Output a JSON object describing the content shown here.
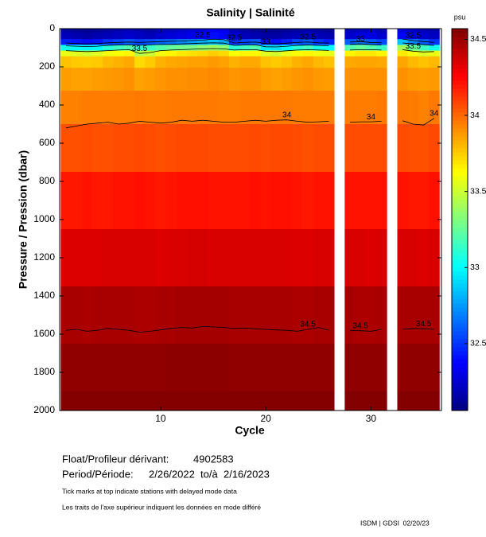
{
  "chart_data": {
    "type": "heatmap",
    "title": "Salinity | Salinité",
    "xlabel": "Cycle",
    "ylabel": "Pressure / Pression (dbar)",
    "colorbar_label": "psu",
    "x": [
      1,
      2,
      3,
      4,
      5,
      6,
      7,
      8,
      9,
      10,
      11,
      12,
      13,
      14,
      15,
      16,
      17,
      18,
      19,
      20,
      21,
      22,
      23,
      24,
      25,
      26,
      27,
      28,
      29,
      30,
      31,
      32,
      33,
      34,
      35,
      36
    ],
    "depths": [
      0,
      40,
      70,
      100,
      130,
      160,
      250,
      400,
      600,
      900,
      1200,
      1500,
      1800,
      2000
    ],
    "z": [
      [
        32.15,
        32.12,
        32.1,
        32.12,
        32.15,
        32.18,
        32.2,
        32.18,
        32.15,
        32.2,
        32.22,
        32.25,
        32.28,
        32.3,
        32.35,
        32.32,
        32.2,
        32.15,
        32.12,
        32.1,
        32.1,
        32.12,
        32.15,
        32.18,
        32.15,
        32.12,
        null,
        32.2,
        32.22,
        32.25,
        32.2,
        null,
        32.3,
        32.25,
        32.2,
        32.18
      ],
      [
        32.2,
        32.18,
        32.15,
        32.18,
        32.2,
        32.22,
        32.25,
        32.22,
        32.2,
        32.25,
        32.28,
        32.3,
        32.33,
        32.35,
        32.4,
        32.38,
        32.25,
        32.2,
        32.18,
        32.15,
        32.15,
        32.18,
        32.2,
        32.22,
        32.2,
        32.18,
        null,
        32.25,
        32.28,
        32.3,
        32.25,
        null,
        32.38,
        32.3,
        32.25,
        32.22
      ],
      [
        32.45,
        32.42,
        32.4,
        32.42,
        32.5,
        32.55,
        32.6,
        32.55,
        32.58,
        32.62,
        32.65,
        32.7,
        32.75,
        32.8,
        32.85,
        32.8,
        32.5,
        32.55,
        32.6,
        32.42,
        32.4,
        32.45,
        32.55,
        32.6,
        32.5,
        32.45,
        null,
        32.6,
        32.65,
        32.6,
        32.55,
        null,
        32.85,
        32.7,
        32.6,
        32.5
      ],
      [
        33.05,
        33.0,
        32.98,
        33.0,
        33.1,
        33.15,
        33.2,
        33.1,
        33.15,
        33.2,
        33.25,
        33.28,
        33.3,
        33.35,
        33.4,
        33.35,
        33.1,
        33.15,
        33.2,
        32.95,
        32.92,
        33.0,
        33.1,
        33.15,
        33.05,
        33.0,
        null,
        33.2,
        33.25,
        33.2,
        33.15,
        null,
        33.4,
        33.25,
        33.15,
        33.05
      ],
      [
        33.58,
        33.55,
        33.52,
        33.55,
        33.6,
        33.62,
        33.65,
        33.45,
        33.5,
        33.6,
        33.65,
        33.68,
        33.7,
        33.72,
        33.75,
        33.72,
        33.62,
        33.65,
        33.65,
        33.55,
        33.52,
        33.58,
        33.62,
        33.65,
        33.6,
        33.58,
        null,
        33.65,
        33.68,
        33.68,
        33.65,
        null,
        33.68,
        33.6,
        33.55,
        33.58
      ],
      [
        33.78,
        33.76,
        33.75,
        33.76,
        33.8,
        33.82,
        33.84,
        33.72,
        33.76,
        33.82,
        33.84,
        33.85,
        33.86,
        33.86,
        33.88,
        33.86,
        33.82,
        33.84,
        33.84,
        33.78,
        33.76,
        33.78,
        33.82,
        33.84,
        33.8,
        33.78,
        null,
        33.84,
        33.85,
        33.85,
        33.84,
        null,
        33.85,
        33.8,
        33.78,
        33.8
      ],
      [
        33.87,
        33.86,
        33.86,
        33.87,
        33.88,
        33.89,
        33.9,
        33.86,
        33.87,
        33.89,
        33.9,
        33.9,
        33.91,
        33.91,
        33.92,
        33.91,
        33.89,
        33.9,
        33.9,
        33.87,
        33.86,
        33.87,
        33.89,
        33.9,
        33.88,
        33.87,
        null,
        33.9,
        33.9,
        33.9,
        33.9,
        null,
        33.9,
        33.88,
        33.87,
        33.88
      ],
      [
        33.94,
        33.94,
        33.95,
        33.95,
        33.95,
        33.95,
        33.95,
        33.96,
        33.95,
        33.95,
        33.96,
        33.96,
        33.96,
        33.96,
        33.96,
        33.95,
        33.95,
        33.96,
        33.96,
        33.96,
        33.96,
        33.96,
        33.95,
        33.95,
        33.95,
        33.95,
        null,
        33.95,
        33.95,
        33.95,
        33.96,
        null,
        33.96,
        33.95,
        33.94,
        33.96
      ],
      [
        34.06,
        34.06,
        34.07,
        34.06,
        34.06,
        34.07,
        34.07,
        34.08,
        34.07,
        34.06,
        34.07,
        34.08,
        34.08,
        34.08,
        34.07,
        34.07,
        34.07,
        34.07,
        34.08,
        34.07,
        34.08,
        34.08,
        34.07,
        34.06,
        34.07,
        34.07,
        null,
        34.07,
        34.07,
        34.07,
        34.07,
        null,
        34.07,
        34.06,
        34.06,
        34.08
      ],
      [
        34.2,
        34.2,
        34.21,
        34.2,
        34.2,
        34.21,
        34.21,
        34.22,
        34.21,
        34.2,
        34.21,
        34.22,
        34.22,
        34.22,
        34.21,
        34.21,
        34.21,
        34.21,
        34.22,
        34.21,
        34.22,
        34.22,
        34.21,
        34.2,
        34.21,
        34.21,
        null,
        34.21,
        34.21,
        34.21,
        34.21,
        null,
        34.21,
        34.2,
        34.2,
        34.22
      ],
      [
        34.34,
        34.34,
        34.34,
        34.34,
        34.35,
        34.35,
        34.35,
        34.35,
        34.35,
        34.34,
        34.35,
        34.35,
        34.36,
        34.36,
        34.35,
        34.35,
        34.35,
        34.35,
        34.35,
        34.35,
        34.35,
        34.35,
        34.34,
        34.34,
        34.35,
        34.35,
        null,
        34.35,
        34.35,
        34.34,
        34.35,
        null,
        34.35,
        34.35,
        34.34,
        34.35
      ],
      [
        34.47,
        34.47,
        34.46,
        34.47,
        34.47,
        34.47,
        34.47,
        34.46,
        34.46,
        34.47,
        34.47,
        34.48,
        34.48,
        34.48,
        34.48,
        34.48,
        34.47,
        34.47,
        34.47,
        34.47,
        34.47,
        34.47,
        34.46,
        34.46,
        34.47,
        34.47,
        null,
        34.47,
        34.46,
        34.46,
        34.47,
        null,
        34.47,
        34.47,
        34.47,
        34.47
      ],
      [
        34.53,
        34.53,
        34.53,
        34.53,
        34.53,
        34.53,
        34.53,
        34.53,
        34.53,
        34.53,
        34.54,
        34.54,
        34.54,
        34.54,
        34.54,
        34.54,
        34.53,
        34.53,
        34.53,
        34.53,
        34.53,
        34.53,
        34.53,
        34.53,
        34.53,
        34.53,
        null,
        34.53,
        34.53,
        34.53,
        34.53,
        null,
        34.53,
        34.53,
        34.53,
        34.53
      ],
      [
        34.56,
        34.56,
        34.56,
        34.56,
        34.56,
        34.56,
        34.56,
        34.56,
        34.56,
        34.56,
        34.56,
        34.56,
        34.56,
        34.56,
        34.56,
        34.56,
        34.56,
        34.56,
        34.56,
        34.56,
        34.56,
        34.56,
        34.56,
        34.56,
        34.56,
        34.56,
        null,
        34.56,
        34.56,
        34.56,
        34.56,
        null,
        34.56,
        34.56,
        34.56,
        34.56
      ]
    ],
    "contours": [
      {
        "level": 32.5,
        "depths": [
          75,
          78,
          80,
          78,
          74,
          72,
          70,
          72,
          70,
          68,
          66,
          65,
          62,
          60,
          55,
          58,
          75,
          72,
          70,
          78,
          80,
          76,
          72,
          70,
          74,
          76,
          null,
          70,
          68,
          72,
          74,
          null,
          55,
          62,
          68,
          72
        ]
      },
      {
        "level": 33,
        "depths": [
          90,
          92,
          94,
          92,
          88,
          86,
          85,
          87,
          85,
          83,
          82,
          80,
          78,
          76,
          74,
          76,
          88,
          86,
          85,
          95,
          96,
          92,
          88,
          86,
          88,
          90,
          null,
          82,
          80,
          84,
          86,
          null,
          75,
          80,
          84,
          88
        ]
      },
      {
        "level": 33.5,
        "depths": [
          115,
          118,
          120,
          118,
          115,
          112,
          110,
          130,
          125,
          115,
          112,
          110,
          108,
          106,
          104,
          106,
          112,
          110,
          110,
          118,
          120,
          116,
          112,
          110,
          112,
          114,
          null,
          112,
          110,
          110,
          112,
          null,
          110,
          118,
          122,
          120
        ]
      },
      {
        "level": 34,
        "depths": [
          520,
          510,
          500,
          495,
          490,
          500,
          495,
          485,
          490,
          495,
          490,
          480,
          485,
          480,
          485,
          490,
          490,
          485,
          480,
          485,
          480,
          478,
          485,
          490,
          488,
          485,
          null,
          490,
          488,
          488,
          485,
          null,
          482,
          500,
          505,
          470
        ]
      },
      {
        "level": 34.5,
        "depths": [
          1580,
          1575,
          1585,
          1580,
          1570,
          1575,
          1580,
          1590,
          1585,
          1578,
          1570,
          1565,
          1568,
          1560,
          1562,
          1565,
          1570,
          1568,
          1572,
          1575,
          1578,
          1580,
          1585,
          1575,
          1565,
          1580,
          null,
          1580,
          1582,
          1585,
          1575,
          null,
          1575,
          1570,
          1572,
          1575
        ]
      }
    ],
    "xlim": [
      0.4,
      36.7
    ],
    "xticks": [
      10,
      20,
      30
    ],
    "ylim": [
      0,
      2000
    ],
    "y_inverted": true,
    "yticks": [
      0,
      200,
      400,
      600,
      800,
      1000,
      1200,
      1400,
      1600,
      1800,
      2000
    ],
    "clim": [
      32.06,
      34.57
    ],
    "cticks": [
      32.5,
      33,
      33.5,
      34,
      34.5
    ],
    "colormap": "jet"
  },
  "footer": {
    "float_label": "Float/Profileur dérivant:",
    "float_id": "4902583",
    "period_label": "Period/Période:",
    "period": "2/26/2022  to/à  2/16/2023",
    "note_en": "Tick marks at top indicate stations with delayed mode data",
    "note_fr": "Les traits de l'axe supérieur indiquent les données en mode différé",
    "credit": "ISDM | GDSI  02/20/23"
  }
}
